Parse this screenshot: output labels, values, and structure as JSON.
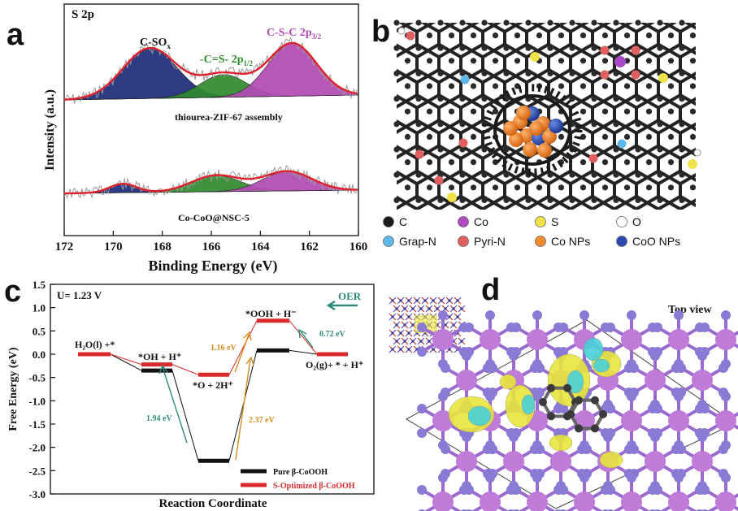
{
  "panels": {
    "a": "a",
    "b": "b",
    "c": "c",
    "d": "d"
  },
  "colors": {
    "navy": "#1c2b7a",
    "green": "#2f8a2f",
    "magenta": "#b14ab3",
    "envelope": "#e0202a",
    "raw": "#9a9a9a",
    "black": "#111111",
    "red": "#d92b2b",
    "teal": "#2e8b7a",
    "orange": "#d98a1e",
    "blue_arrow": "#2b6f7a",
    "carbon": "#2a2a2a",
    "cobalt": "#a64ac9",
    "sulfur": "#f2e24a",
    "oxygen": "#ffffff",
    "grapN": "#5eb8e8",
    "pyriN": "#e06060",
    "coNP": "#f08a2a",
    "cooNP": "#2a4ab0",
    "atom_purple": "#8a7ad6",
    "iso_yellow": "#e8e43c",
    "iso_cyan": "#48d0d8"
  },
  "chart_data": [
    {
      "type": "line",
      "title": "S 2p",
      "xlabel": "Binding Energy (eV)",
      "ylabel": "Intensity (a.u.)",
      "xlim": [
        172,
        160
      ],
      "x_ticks": [
        "172",
        "170",
        "168",
        "166",
        "164",
        "162",
        "160"
      ],
      "series": [
        {
          "name": "C-SO",
          "subscript": "x",
          "center": 168.5,
          "height": 1.0,
          "width": 1.1,
          "trace": "top"
        },
        {
          "name": "-C=S- 2p",
          "subscript": "1/2",
          "center": 165.5,
          "height": 0.45,
          "width": 0.95,
          "trace": "top"
        },
        {
          "name": "C-S-C 2p",
          "subscript": "3/2",
          "center": 162.7,
          "height": 1.05,
          "width": 1.0,
          "trace": "top"
        },
        {
          "name": "C-SO",
          "center": 169.6,
          "height": 0.22,
          "width": 0.55,
          "trace": "bottom"
        },
        {
          "name": "-C=S- 2p",
          "center": 165.8,
          "height": 0.4,
          "width": 1.0,
          "trace": "bottom"
        },
        {
          "name": "C-S-C 2p",
          "center": 162.9,
          "height": 0.48,
          "width": 1.0,
          "trace": "bottom"
        }
      ],
      "annotations": [
        "thiourea-ZIF-67 assembly",
        "Co-CoO@NSC-5"
      ]
    },
    {
      "type": "line",
      "title": "U= 1.23 V",
      "xlabel": "Reaction Coordinate",
      "ylabel": "Free Energy (eV)",
      "ylim": [
        -3.0,
        1.5
      ],
      "y_ticks": [
        "1.5",
        "1.0",
        "0.5",
        "0.0",
        "-0.5",
        "-1.0",
        "-1.5",
        "-2.0",
        "-2.5",
        "-3.0"
      ],
      "series": [
        {
          "name": "Pure β-CoOOH",
          "values": [
            0.0,
            -0.35,
            -2.29,
            0.08,
            0.0
          ]
        },
        {
          "name": "S-Optimized β-CoOOH",
          "values": [
            0.0,
            -0.22,
            -0.44,
            0.72,
            0.0
          ]
        }
      ],
      "state_labels": [
        "H₂O(l) +*",
        "*OH + H⁺",
        "*O + 2H⁺",
        "*OOH + H⁻",
        "O₂(g)+ * + H⁺"
      ],
      "arrow_labels": [
        "1.94 eV",
        "1.16 eV",
        "2.37 eV",
        "0.72 eV"
      ],
      "annotations": [
        "OER"
      ]
    }
  ],
  "legend_b": [
    {
      "label": "C",
      "color": "#1a1a1a"
    },
    {
      "label": "Co",
      "color": "#b04ac0"
    },
    {
      "label": "S",
      "color": "#f2e24a"
    },
    {
      "label": "O",
      "color": "#ffffff"
    },
    {
      "label": "Grap-N",
      "color": "#5eb8e8"
    },
    {
      "label": "Pyri-N",
      "color": "#e06060"
    },
    {
      "label": "Co NPs",
      "color": "#f08a2a"
    },
    {
      "label": "CoO NPs",
      "color": "#2a4ab0"
    }
  ],
  "panel_d": {
    "label": "Top view"
  }
}
